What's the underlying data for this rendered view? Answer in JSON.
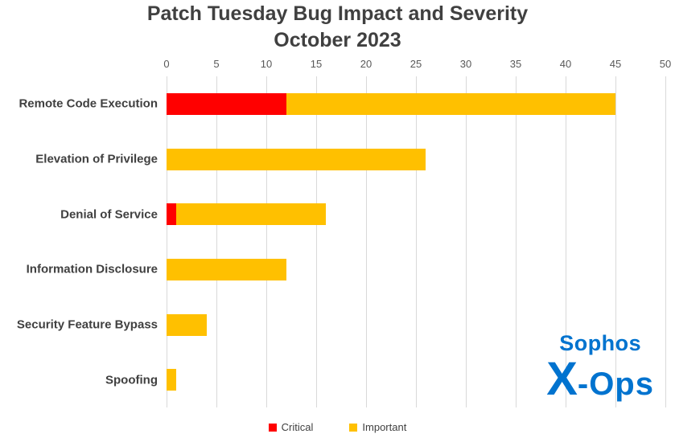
{
  "chart": {
    "title_line1": "Patch Tuesday Bug Impact and Severity",
    "title_line2": "October 2023"
  },
  "chart_data": {
    "type": "bar",
    "orientation": "horizontal",
    "stacked": true,
    "title": "Patch Tuesday Bug Impact and Severity October 2023",
    "categories": [
      "Remote Code Execution",
      "Elevation of Privilege",
      "Denial of Service",
      "Information Disclosure",
      "Security Feature Bypass",
      "Spoofing"
    ],
    "series": [
      {
        "name": "Critical",
        "color": "#ff0000",
        "values": [
          12,
          0,
          1,
          0,
          0,
          0
        ]
      },
      {
        "name": "Important",
        "color": "#ffc000",
        "values": [
          33,
          26,
          15,
          12,
          4,
          1
        ]
      }
    ],
    "totals": [
      45,
      26,
      16,
      12,
      4,
      1
    ],
    "xlim": [
      0,
      50
    ],
    "tick_step": 5,
    "tick_labels": [
      "0",
      "5",
      "10",
      "15",
      "20",
      "25",
      "30",
      "35",
      "40",
      "45",
      "50"
    ],
    "grid": "vertical",
    "legend_position": "bottom",
    "xlabel": "",
    "ylabel": ""
  },
  "logo": {
    "brand": "Sophos",
    "x": "X",
    "ops": "-Ops",
    "color": "#0073cf"
  },
  "colors": {
    "title": "#404040",
    "tick_label": "#595959",
    "gridline": "#d9d9d9",
    "category_label": "#404040",
    "critical": "#ff0000",
    "important": "#ffc000"
  }
}
